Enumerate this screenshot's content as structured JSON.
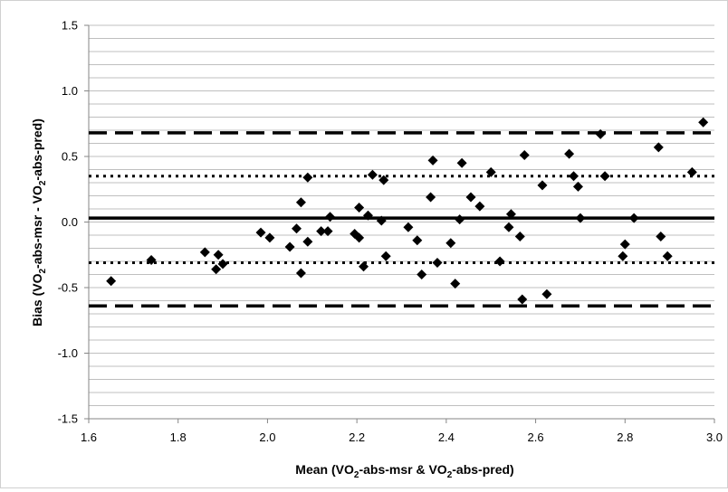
{
  "chart_data": {
    "type": "scatter",
    "xlabel": {
      "pre": "Mean (VO",
      "sub1": "2",
      "mid": "-abs-msr & VO",
      "sub2": "2",
      "post": "-abs-pred)"
    },
    "ylabel": {
      "pre": "Bias (VO",
      "sub1": "2",
      "mid": "-abs-msr - VO",
      "sub2": "2",
      "post": "-abs-pred)"
    },
    "xlim": [
      1.6,
      3.0
    ],
    "ylim": [
      -1.5,
      1.5
    ],
    "x_ticks": [
      "1.6",
      "1.8",
      "2.0",
      "2.2",
      "2.4",
      "2.6",
      "2.8",
      "3.0"
    ],
    "y_ticks": [
      "1.5",
      "1.0",
      "0.5",
      "0.0",
      "-0.5",
      "-1.0",
      "-1.5"
    ],
    "grid": "horizontal, every 0.1",
    "reference_lines": [
      {
        "style": "solid",
        "y": 0.03
      },
      {
        "style": "dotted",
        "y": 0.35
      },
      {
        "style": "dotted",
        "y": -0.31
      },
      {
        "style": "dashed",
        "y": 0.68
      },
      {
        "style": "dashed",
        "y": -0.64
      }
    ],
    "marker": "diamond",
    "color": "#000000",
    "points": [
      [
        1.65,
        -0.45
      ],
      [
        1.74,
        -0.29
      ],
      [
        1.86,
        -0.23
      ],
      [
        1.885,
        -0.36
      ],
      [
        1.89,
        -0.25
      ],
      [
        1.9,
        -0.32
      ],
      [
        1.985,
        -0.08
      ],
      [
        2.005,
        -0.12
      ],
      [
        2.05,
        -0.19
      ],
      [
        2.065,
        -0.05
      ],
      [
        2.075,
        0.15
      ],
      [
        2.075,
        -0.39
      ],
      [
        2.09,
        0.34
      ],
      [
        2.09,
        -0.15
      ],
      [
        2.12,
        -0.07
      ],
      [
        2.135,
        -0.07
      ],
      [
        2.14,
        0.04
      ],
      [
        2.195,
        -0.09
      ],
      [
        2.205,
        0.11
      ],
      [
        2.205,
        -0.12
      ],
      [
        2.215,
        -0.34
      ],
      [
        2.225,
        0.05
      ],
      [
        2.235,
        0.36
      ],
      [
        2.255,
        0.01
      ],
      [
        2.26,
        0.32
      ],
      [
        2.265,
        -0.26
      ],
      [
        2.315,
        -0.04
      ],
      [
        2.335,
        -0.14
      ],
      [
        2.345,
        -0.4
      ],
      [
        2.365,
        0.19
      ],
      [
        2.37,
        0.47
      ],
      [
        2.38,
        -0.31
      ],
      [
        2.41,
        -0.16
      ],
      [
        2.42,
        -0.47
      ],
      [
        2.43,
        0.02
      ],
      [
        2.435,
        0.45
      ],
      [
        2.455,
        0.19
      ],
      [
        2.475,
        0.12
      ],
      [
        2.5,
        0.38
      ],
      [
        2.52,
        -0.3
      ],
      [
        2.54,
        -0.04
      ],
      [
        2.545,
        0.06
      ],
      [
        2.565,
        -0.11
      ],
      [
        2.57,
        -0.59
      ],
      [
        2.575,
        0.51
      ],
      [
        2.615,
        0.28
      ],
      [
        2.625,
        -0.55
      ],
      [
        2.675,
        0.52
      ],
      [
        2.685,
        0.35
      ],
      [
        2.695,
        0.27
      ],
      [
        2.7,
        0.03
      ],
      [
        2.745,
        0.67
      ],
      [
        2.755,
        0.35
      ],
      [
        2.795,
        -0.26
      ],
      [
        2.8,
        -0.17
      ],
      [
        2.82,
        0.03
      ],
      [
        2.875,
        0.57
      ],
      [
        2.88,
        -0.11
      ],
      [
        2.895,
        -0.26
      ],
      [
        2.95,
        0.38
      ],
      [
        2.975,
        0.76
      ]
    ]
  }
}
